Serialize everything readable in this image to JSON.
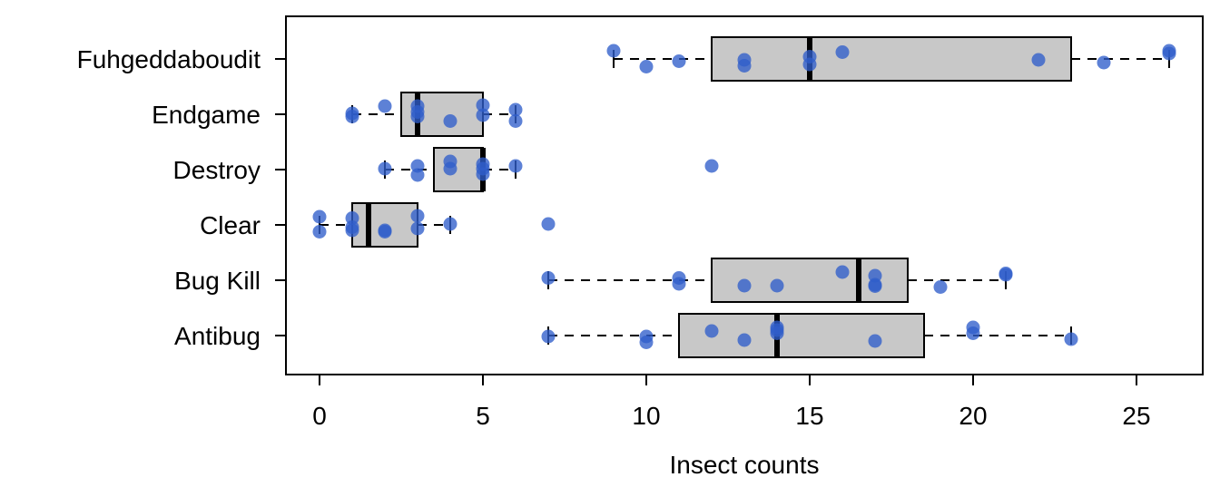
{
  "chart_data": {
    "type": "boxplot",
    "orientation": "horizontal",
    "xlabel": "Insect counts",
    "ylabel": "",
    "title": "",
    "xlim": [
      -1,
      27
    ],
    "x_ticks": [
      0,
      5,
      10,
      15,
      20,
      25
    ],
    "grid": false,
    "legend": "none",
    "colors": {
      "box_fill": "#c8c8c8",
      "box_stroke": "#000000",
      "point": "#2f5ecb",
      "median": "#000000"
    },
    "categories": [
      "Fuhgeddaboudit",
      "Endgame",
      "Destroy",
      "Clear",
      "Bug Kill",
      "Antibug"
    ],
    "boxes": [
      {
        "name": "Fuhgeddaboudit",
        "whisker_low": 9,
        "q1": 12,
        "median": 15,
        "q3": 23,
        "whisker_high": 26,
        "outliers": [],
        "points": [
          {
            "x": 9,
            "j": 0.18
          },
          {
            "x": 10,
            "j": -0.17
          },
          {
            "x": 11,
            "j": -0.05
          },
          {
            "x": 13,
            "j": -0.02
          },
          {
            "x": 13,
            "j": -0.15
          },
          {
            "x": 15,
            "j": 0.05
          },
          {
            "x": 15,
            "j": -0.12
          },
          {
            "x": 16,
            "j": 0.15
          },
          {
            "x": 22,
            "j": -0.02
          },
          {
            "x": 24,
            "j": -0.08
          },
          {
            "x": 26,
            "j": 0.18
          },
          {
            "x": 26,
            "j": 0.12
          }
        ]
      },
      {
        "name": "Endgame",
        "whisker_low": 1,
        "q1": 2.5,
        "median": 3,
        "q3": 5,
        "whisker_high": 6,
        "outliers": [],
        "points": [
          {
            "x": 1,
            "j": 0.02
          },
          {
            "x": 1,
            "j": -0.05
          },
          {
            "x": 2,
            "j": 0.18
          },
          {
            "x": 3,
            "j": 0.18
          },
          {
            "x": 3,
            "j": 0.05
          },
          {
            "x": 3,
            "j": -0.05
          },
          {
            "x": 4,
            "j": -0.15
          },
          {
            "x": 5,
            "j": 0.2
          },
          {
            "x": 5,
            "j": -0.02
          },
          {
            "x": 6,
            "j": 0.1
          },
          {
            "x": 6,
            "j": -0.15
          }
        ]
      },
      {
        "name": "Destroy",
        "whisker_low": 2,
        "q1": 3.5,
        "median": 5,
        "q3": 5,
        "whisker_high": 6,
        "outliers": [
          12
        ],
        "points": [
          {
            "x": 2,
            "j": 0.02
          },
          {
            "x": 3,
            "j": 0.08
          },
          {
            "x": 3,
            "j": -0.12
          },
          {
            "x": 4,
            "j": 0.18
          },
          {
            "x": 4,
            "j": 0.02
          },
          {
            "x": 5,
            "j": 0.12
          },
          {
            "x": 5,
            "j": 0.02
          },
          {
            "x": 5,
            "j": -0.1
          },
          {
            "x": 6,
            "j": 0.08
          },
          {
            "x": 12,
            "j": 0.08
          }
        ]
      },
      {
        "name": "Clear",
        "whisker_low": 0,
        "q1": 1,
        "median": 1.5,
        "q3": 3,
        "whisker_high": 4,
        "outliers": [
          7
        ],
        "points": [
          {
            "x": 0,
            "j": 0.18
          },
          {
            "x": 0,
            "j": -0.15
          },
          {
            "x": 1,
            "j": 0.15
          },
          {
            "x": 1,
            "j": -0.05
          },
          {
            "x": 1,
            "j": -0.12
          },
          {
            "x": 2,
            "j": -0.12
          },
          {
            "x": 2,
            "j": -0.15
          },
          {
            "x": 3,
            "j": 0.2
          },
          {
            "x": 3,
            "j": -0.08
          },
          {
            "x": 4,
            "j": 0.02
          },
          {
            "x": 7,
            "j": 0.02
          }
        ]
      },
      {
        "name": "Bug Kill",
        "whisker_low": 7,
        "q1": 12,
        "median": 16.5,
        "q3": 18,
        "whisker_high": 21,
        "outliers": [],
        "points": [
          {
            "x": 7,
            "j": 0.05
          },
          {
            "x": 11,
            "j": 0.05
          },
          {
            "x": 11,
            "j": -0.08
          },
          {
            "x": 13,
            "j": -0.12
          },
          {
            "x": 14,
            "j": -0.12
          },
          {
            "x": 16,
            "j": 0.18
          },
          {
            "x": 17,
            "j": 0.1
          },
          {
            "x": 17,
            "j": -0.1
          },
          {
            "x": 17,
            "j": -0.13
          },
          {
            "x": 19,
            "j": -0.15
          },
          {
            "x": 21,
            "j": 0.15
          },
          {
            "x": 21,
            "j": 0.12
          }
        ]
      },
      {
        "name": "Antibug",
        "whisker_low": 7,
        "q1": 11,
        "median": 14,
        "q3": 18.5,
        "whisker_high": 23,
        "outliers": [],
        "points": [
          {
            "x": 7,
            "j": -0.02
          },
          {
            "x": 10,
            "j": -0.02
          },
          {
            "x": 10,
            "j": -0.15
          },
          {
            "x": 12,
            "j": 0.1
          },
          {
            "x": 13,
            "j": -0.1
          },
          {
            "x": 14,
            "j": 0.18
          },
          {
            "x": 14,
            "j": 0.12
          },
          {
            "x": 14,
            "j": 0.05
          },
          {
            "x": 17,
            "j": -0.12
          },
          {
            "x": 20,
            "j": 0.18
          },
          {
            "x": 20,
            "j": 0.05
          },
          {
            "x": 23,
            "j": -0.08
          }
        ]
      }
    ]
  }
}
